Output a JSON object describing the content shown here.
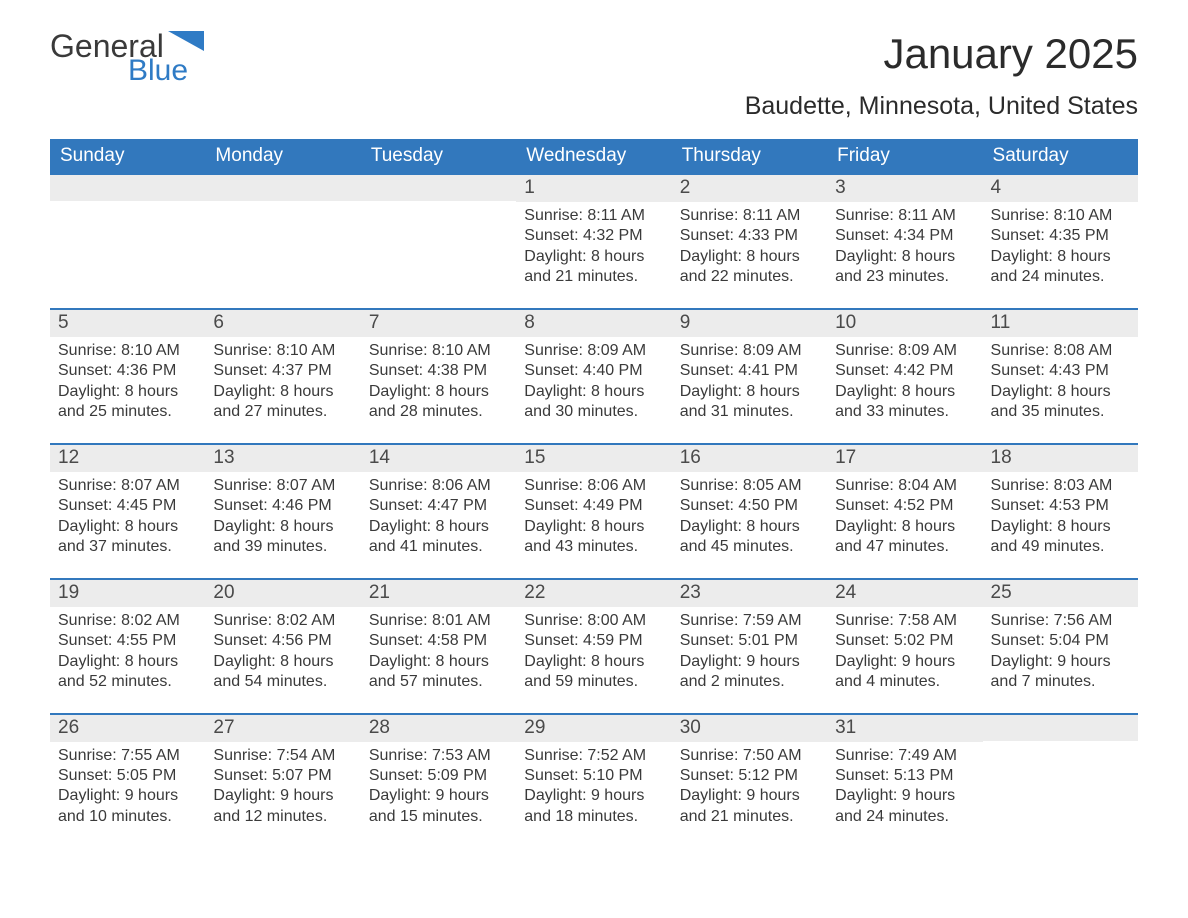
{
  "logo": {
    "text1": "General",
    "text2": "Blue",
    "flag_color": "#2f7bc5"
  },
  "title": "January 2025",
  "location": "Baudette, Minnesota, United States",
  "colors": {
    "header_bg": "#3278bd",
    "header_text": "#ffffff",
    "daynum_bg": "#ececec",
    "body_text": "#3a3a3a",
    "week_border": "#3278bd"
  },
  "day_headers": [
    "Sunday",
    "Monday",
    "Tuesday",
    "Wednesday",
    "Thursday",
    "Friday",
    "Saturday"
  ],
  "labels": {
    "sunrise": "Sunrise:",
    "sunset": "Sunset:",
    "daylight": "Daylight:",
    "and": "and"
  },
  "weeks": [
    [
      null,
      null,
      null,
      {
        "n": "1",
        "sr": "8:11 AM",
        "ss": "4:32 PM",
        "dh": "8 hours",
        "dm": "21 minutes."
      },
      {
        "n": "2",
        "sr": "8:11 AM",
        "ss": "4:33 PM",
        "dh": "8 hours",
        "dm": "22 minutes."
      },
      {
        "n": "3",
        "sr": "8:11 AM",
        "ss": "4:34 PM",
        "dh": "8 hours",
        "dm": "23 minutes."
      },
      {
        "n": "4",
        "sr": "8:10 AM",
        "ss": "4:35 PM",
        "dh": "8 hours",
        "dm": "24 minutes."
      }
    ],
    [
      {
        "n": "5",
        "sr": "8:10 AM",
        "ss": "4:36 PM",
        "dh": "8 hours",
        "dm": "25 minutes."
      },
      {
        "n": "6",
        "sr": "8:10 AM",
        "ss": "4:37 PM",
        "dh": "8 hours",
        "dm": "27 minutes."
      },
      {
        "n": "7",
        "sr": "8:10 AM",
        "ss": "4:38 PM",
        "dh": "8 hours",
        "dm": "28 minutes."
      },
      {
        "n": "8",
        "sr": "8:09 AM",
        "ss": "4:40 PM",
        "dh": "8 hours",
        "dm": "30 minutes."
      },
      {
        "n": "9",
        "sr": "8:09 AM",
        "ss": "4:41 PM",
        "dh": "8 hours",
        "dm": "31 minutes."
      },
      {
        "n": "10",
        "sr": "8:09 AM",
        "ss": "4:42 PM",
        "dh": "8 hours",
        "dm": "33 minutes."
      },
      {
        "n": "11",
        "sr": "8:08 AM",
        "ss": "4:43 PM",
        "dh": "8 hours",
        "dm": "35 minutes."
      }
    ],
    [
      {
        "n": "12",
        "sr": "8:07 AM",
        "ss": "4:45 PM",
        "dh": "8 hours",
        "dm": "37 minutes."
      },
      {
        "n": "13",
        "sr": "8:07 AM",
        "ss": "4:46 PM",
        "dh": "8 hours",
        "dm": "39 minutes."
      },
      {
        "n": "14",
        "sr": "8:06 AM",
        "ss": "4:47 PM",
        "dh": "8 hours",
        "dm": "41 minutes."
      },
      {
        "n": "15",
        "sr": "8:06 AM",
        "ss": "4:49 PM",
        "dh": "8 hours",
        "dm": "43 minutes."
      },
      {
        "n": "16",
        "sr": "8:05 AM",
        "ss": "4:50 PM",
        "dh": "8 hours",
        "dm": "45 minutes."
      },
      {
        "n": "17",
        "sr": "8:04 AM",
        "ss": "4:52 PM",
        "dh": "8 hours",
        "dm": "47 minutes."
      },
      {
        "n": "18",
        "sr": "8:03 AM",
        "ss": "4:53 PM",
        "dh": "8 hours",
        "dm": "49 minutes."
      }
    ],
    [
      {
        "n": "19",
        "sr": "8:02 AM",
        "ss": "4:55 PM",
        "dh": "8 hours",
        "dm": "52 minutes."
      },
      {
        "n": "20",
        "sr": "8:02 AM",
        "ss": "4:56 PM",
        "dh": "8 hours",
        "dm": "54 minutes."
      },
      {
        "n": "21",
        "sr": "8:01 AM",
        "ss": "4:58 PM",
        "dh": "8 hours",
        "dm": "57 minutes."
      },
      {
        "n": "22",
        "sr": "8:00 AM",
        "ss": "4:59 PM",
        "dh": "8 hours",
        "dm": "59 minutes."
      },
      {
        "n": "23",
        "sr": "7:59 AM",
        "ss": "5:01 PM",
        "dh": "9 hours",
        "dm": "2 minutes."
      },
      {
        "n": "24",
        "sr": "7:58 AM",
        "ss": "5:02 PM",
        "dh": "9 hours",
        "dm": "4 minutes."
      },
      {
        "n": "25",
        "sr": "7:56 AM",
        "ss": "5:04 PM",
        "dh": "9 hours",
        "dm": "7 minutes."
      }
    ],
    [
      {
        "n": "26",
        "sr": "7:55 AM",
        "ss": "5:05 PM",
        "dh": "9 hours",
        "dm": "10 minutes."
      },
      {
        "n": "27",
        "sr": "7:54 AM",
        "ss": "5:07 PM",
        "dh": "9 hours",
        "dm": "12 minutes."
      },
      {
        "n": "28",
        "sr": "7:53 AM",
        "ss": "5:09 PM",
        "dh": "9 hours",
        "dm": "15 minutes."
      },
      {
        "n": "29",
        "sr": "7:52 AM",
        "ss": "5:10 PM",
        "dh": "9 hours",
        "dm": "18 minutes."
      },
      {
        "n": "30",
        "sr": "7:50 AM",
        "ss": "5:12 PM",
        "dh": "9 hours",
        "dm": "21 minutes."
      },
      {
        "n": "31",
        "sr": "7:49 AM",
        "ss": "5:13 PM",
        "dh": "9 hours",
        "dm": "24 minutes."
      },
      null
    ]
  ]
}
